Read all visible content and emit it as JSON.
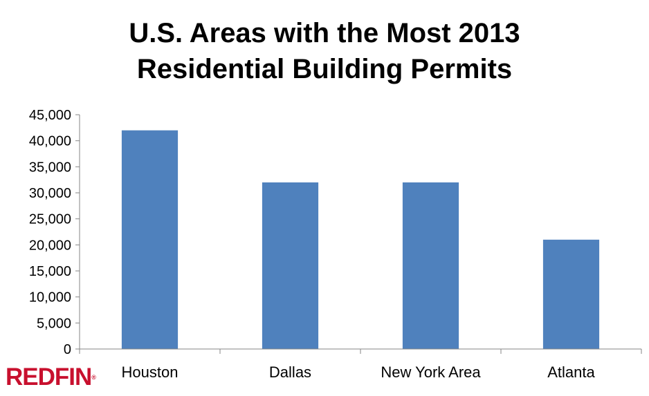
{
  "chart_data": {
    "type": "bar",
    "title_lines": [
      "U.S. Areas with the Most 2013",
      "Residential Building Permits"
    ],
    "categories": [
      "Houston",
      "Dallas",
      "New York Area",
      "Atlanta"
    ],
    "values": [
      42000,
      32000,
      32000,
      21000
    ],
    "ylim": [
      0,
      45000
    ],
    "yticks": [
      0,
      5000,
      10000,
      15000,
      20000,
      25000,
      30000,
      35000,
      40000,
      45000
    ],
    "ytick_labels": [
      "0",
      "5,000",
      "10,000",
      "15,000",
      "20,000",
      "25,000",
      "30,000",
      "35,000",
      "40,000",
      "45,000"
    ],
    "xlabel": "",
    "ylabel": "",
    "grid": false,
    "legend": "none",
    "bar_color": "#4f81bd",
    "axis_color": "#868686"
  },
  "brand": {
    "logo_text": "REDFIN",
    "logo_mark": "®",
    "logo_color": "#c8102e"
  }
}
